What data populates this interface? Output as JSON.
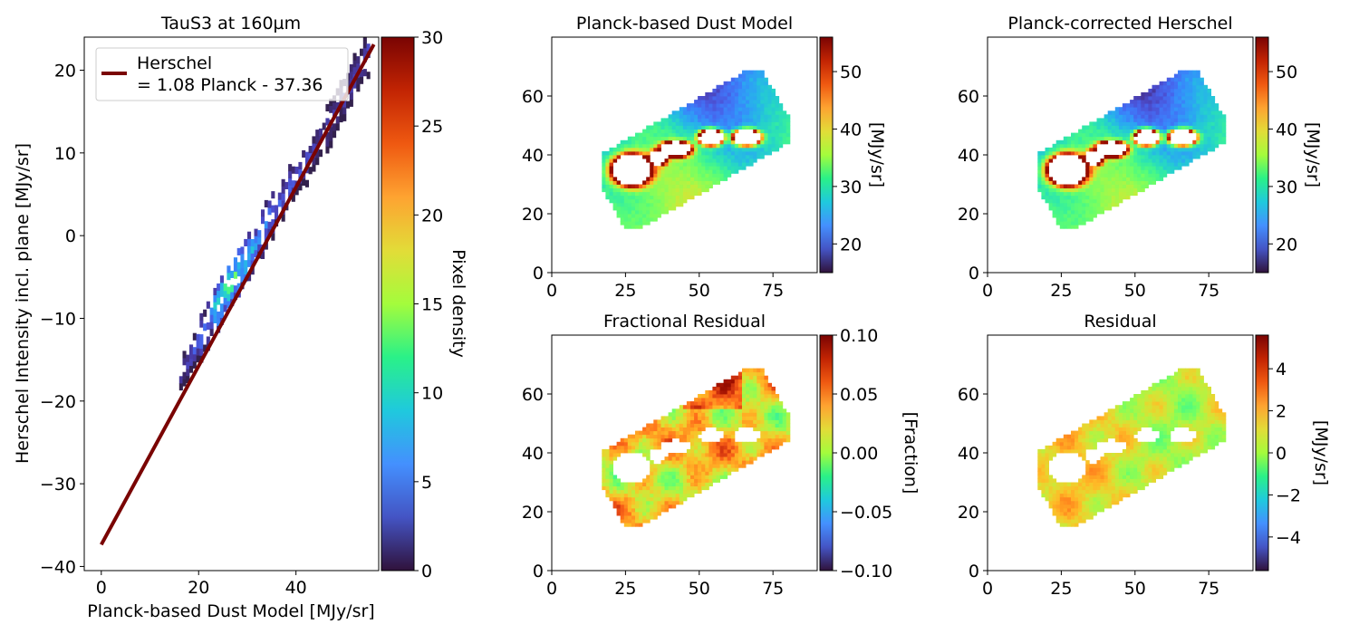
{
  "chart_data": [
    {
      "type": "scatter",
      "subtype": "2d-histogram-with-fit",
      "title": "TauS3 at 160µm",
      "xlabel": "Planck-based Dust Model [MJy/sr]",
      "ylabel": "Herschel Intensity incl. plane [MJy/sr]",
      "xlim": [
        -3.5,
        57
      ],
      "ylim": [
        -40.5,
        24
      ],
      "xticks": [
        "0",
        "20",
        "40"
      ],
      "yticks": [
        "−40",
        "−30",
        "−20",
        "−10",
        "0",
        "10",
        "20"
      ],
      "colorbar": {
        "label": "Pixel density",
        "ticks": [
          "0",
          "5",
          "10",
          "15",
          "20",
          "25",
          "30"
        ],
        "range": [
          0,
          30
        ],
        "colormap": "turbo"
      },
      "legend": {
        "placement": "upper-left",
        "entry_line1": "Herschel",
        "entry_line2": "= 1.08 Planck - 37.36"
      },
      "fit": {
        "slope": 1.08,
        "intercept": -37.36,
        "x_range": [
          0,
          56
        ],
        "color": "#7a0403"
      },
      "density_band": {
        "x": [
          16,
          19,
          22,
          25,
          28,
          31,
          34,
          37,
          40,
          43,
          46,
          49,
          52,
          55
        ],
        "y": [
          -17,
          -14,
          -10.5,
          -7.5,
          -4.5,
          -2,
          1.5,
          4,
          7,
          9.5,
          12.5,
          16,
          19,
          22.5
        ],
        "peak_density": [
          2,
          3,
          5,
          13,
          10,
          6,
          4,
          3,
          3,
          2,
          2,
          2,
          2,
          2
        ]
      }
    },
    {
      "type": "heatmap",
      "title": "Planck-based Dust Model",
      "xticks": [
        "0",
        "25",
        "50",
        "75"
      ],
      "yticks": [
        "0",
        "20",
        "40",
        "60"
      ],
      "xlim": [
        0,
        90
      ],
      "ylim": [
        0,
        80
      ],
      "colorbar": {
        "label": "[MJy/sr]",
        "ticks": [
          "20",
          "30",
          "40",
          "50"
        ],
        "range": [
          15,
          56
        ],
        "colormap": "turbo"
      }
    },
    {
      "type": "heatmap",
      "title": "Planck-corrected Herschel",
      "xticks": [
        "0",
        "25",
        "50",
        "75"
      ],
      "yticks": [
        "0",
        "20",
        "40",
        "60"
      ],
      "xlim": [
        0,
        90
      ],
      "ylim": [
        0,
        80
      ],
      "colorbar": {
        "label": "[MJy/sr]",
        "ticks": [
          "20",
          "30",
          "40",
          "50"
        ],
        "range": [
          15,
          56
        ],
        "colormap": "turbo"
      }
    },
    {
      "type": "heatmap",
      "title": "Fractional Residual",
      "xticks": [
        "0",
        "25",
        "50",
        "75"
      ],
      "yticks": [
        "0",
        "20",
        "40",
        "60"
      ],
      "xlim": [
        0,
        90
      ],
      "ylim": [
        0,
        80
      ],
      "colorbar": {
        "label": "[Fraction]",
        "ticks": [
          "0.10",
          "0.05",
          "0.00",
          "−0.05",
          "−0.10"
        ],
        "range": [
          -0.1,
          0.1
        ],
        "colormap": "turbo"
      }
    },
    {
      "type": "heatmap",
      "title": "Residual",
      "xticks": [
        "0",
        "25",
        "50",
        "75"
      ],
      "yticks": [
        "0",
        "20",
        "40",
        "60"
      ],
      "xlim": [
        0,
        90
      ],
      "ylim": [
        0,
        80
      ],
      "colorbar": {
        "label": "[MJy/sr]",
        "ticks": [
          "4",
          "2",
          "0",
          "−2",
          "−4"
        ],
        "range": [
          -5.6,
          5.6
        ],
        "colormap": "turbo"
      }
    }
  ]
}
